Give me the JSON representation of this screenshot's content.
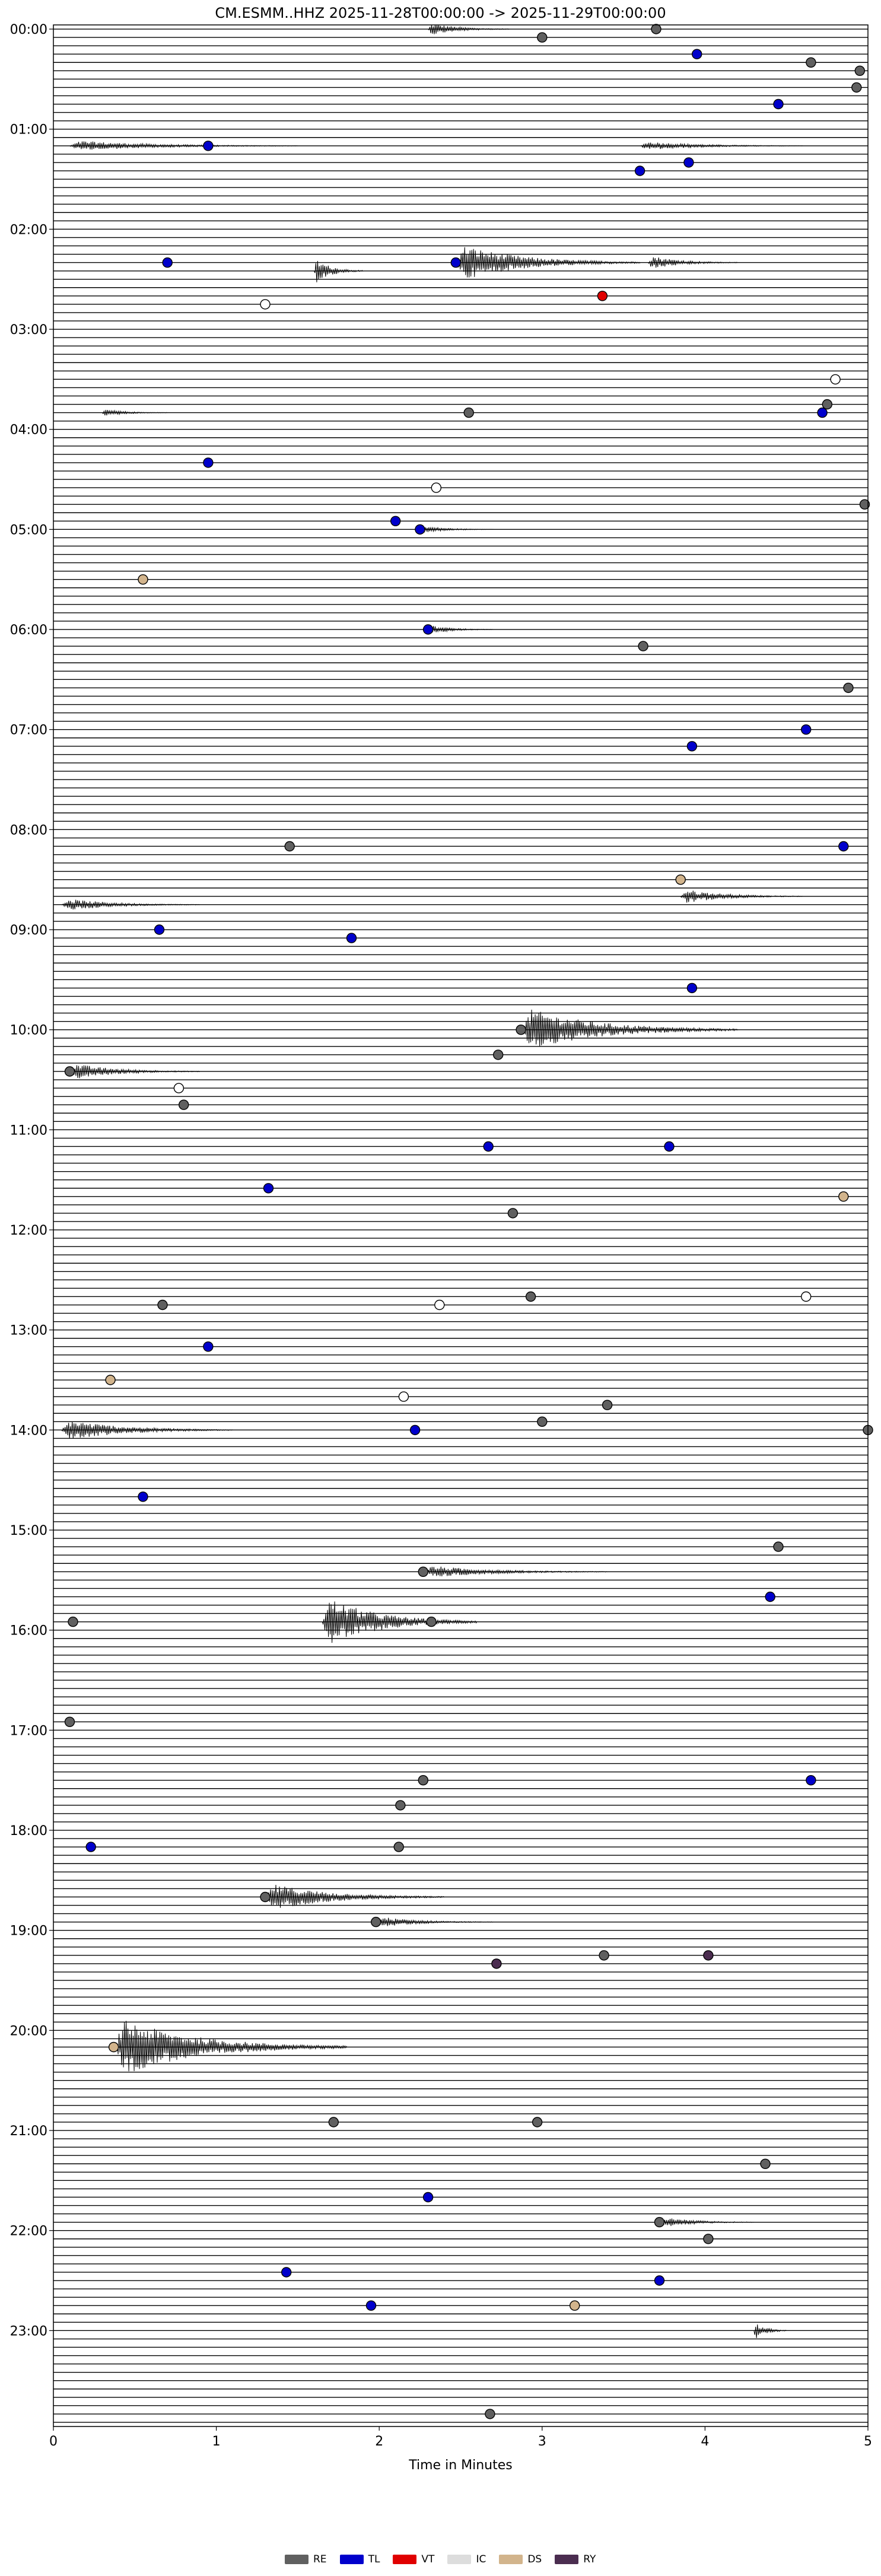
{
  "chart_data": {
    "type": "scatter",
    "title": "CM.ESMM..HHZ  2025-11-28T00:00:00 -> 2025-11-29T00:00:00",
    "xlabel": "Time in Minutes",
    "ylabel": "",
    "xlim": [
      0,
      5
    ],
    "x_ticks": [
      "0",
      "1",
      "2",
      "3",
      "4",
      "5"
    ],
    "y_ticks": [
      "00:00",
      "01:00",
      "02:00",
      "03:00",
      "04:00",
      "05:00",
      "06:00",
      "07:00",
      "08:00",
      "09:00",
      "10:00",
      "11:00",
      "12:00",
      "13:00",
      "14:00",
      "15:00",
      "16:00",
      "17:00",
      "18:00",
      "19:00",
      "20:00",
      "21:00",
      "22:00",
      "23:00"
    ],
    "rows_per_hour": 12,
    "total_rows": 288,
    "legend_position": "bottom",
    "colors": {
      "RE": "#606060",
      "TL": "#0000cc",
      "VT": "#e00000",
      "IC": "#dddddd",
      "DS": "#d2b48c",
      "RY": "#4b2d50"
    },
    "legend": [
      {
        "code": "RE",
        "label": "RE"
      },
      {
        "code": "TL",
        "label": "TL"
      },
      {
        "code": "VT",
        "label": "VT"
      },
      {
        "code": "IC",
        "label": "IC"
      },
      {
        "code": "DS",
        "label": "DS"
      },
      {
        "code": "RY",
        "label": "RY"
      }
    ],
    "events": [
      {
        "row": 0,
        "minute": 3.7,
        "cls": "RE"
      },
      {
        "row": 1,
        "minute": 3.0,
        "cls": "RE"
      },
      {
        "row": 3,
        "minute": 3.95,
        "cls": "TL"
      },
      {
        "row": 4,
        "minute": 4.65,
        "cls": "RE"
      },
      {
        "row": 5,
        "minute": 4.95,
        "cls": "RE"
      },
      {
        "row": 7,
        "minute": 4.93,
        "cls": "RE"
      },
      {
        "row": 9,
        "minute": 4.45,
        "cls": "TL"
      },
      {
        "row": 14,
        "minute": 0.95,
        "cls": "TL"
      },
      {
        "row": 16,
        "minute": 3.9,
        "cls": "TL"
      },
      {
        "row": 17,
        "minute": 3.6,
        "cls": "TL"
      },
      {
        "row": 28,
        "minute": 0.7,
        "cls": "TL"
      },
      {
        "row": 28,
        "minute": 2.47,
        "cls": "TL"
      },
      {
        "row": 32,
        "minute": 3.37,
        "cls": "VT"
      },
      {
        "row": 33,
        "minute": 1.3,
        "cls": "IC"
      },
      {
        "row": 42,
        "minute": 4.8,
        "cls": "IC"
      },
      {
        "row": 45,
        "minute": 4.75,
        "cls": "RE"
      },
      {
        "row": 46,
        "minute": 4.72,
        "cls": "TL"
      },
      {
        "row": 46,
        "minute": 2.55,
        "cls": "RE"
      },
      {
        "row": 52,
        "minute": 0.95,
        "cls": "TL"
      },
      {
        "row": 55,
        "minute": 2.35,
        "cls": "IC"
      },
      {
        "row": 57,
        "minute": 4.98,
        "cls": "RE"
      },
      {
        "row": 59,
        "minute": 2.1,
        "cls": "TL"
      },
      {
        "row": 60,
        "minute": 2.25,
        "cls": "TL"
      },
      {
        "row": 66,
        "minute": 0.55,
        "cls": "DS"
      },
      {
        "row": 72,
        "minute": 2.3,
        "cls": "TL"
      },
      {
        "row": 74,
        "minute": 3.62,
        "cls": "RE"
      },
      {
        "row": 79,
        "minute": 4.88,
        "cls": "RE"
      },
      {
        "row": 84,
        "minute": 4.62,
        "cls": "TL"
      },
      {
        "row": 86,
        "minute": 3.92,
        "cls": "TL"
      },
      {
        "row": 98,
        "minute": 1.45,
        "cls": "RE"
      },
      {
        "row": 98,
        "minute": 4.85,
        "cls": "TL"
      },
      {
        "row": 102,
        "minute": 3.85,
        "cls": "DS"
      },
      {
        "row": 108,
        "minute": 0.65,
        "cls": "TL"
      },
      {
        "row": 109,
        "minute": 1.83,
        "cls": "TL"
      },
      {
        "row": 115,
        "minute": 3.92,
        "cls": "TL"
      },
      {
        "row": 120,
        "minute": 2.87,
        "cls": "RE"
      },
      {
        "row": 123,
        "minute": 2.73,
        "cls": "RE"
      },
      {
        "row": 125,
        "minute": 0.1,
        "cls": "RE"
      },
      {
        "row": 127,
        "minute": 0.77,
        "cls": "IC"
      },
      {
        "row": 129,
        "minute": 0.8,
        "cls": "RE"
      },
      {
        "row": 134,
        "minute": 2.67,
        "cls": "TL"
      },
      {
        "row": 134,
        "minute": 3.78,
        "cls": "TL"
      },
      {
        "row": 139,
        "minute": 1.32,
        "cls": "TL"
      },
      {
        "row": 140,
        "minute": 4.85,
        "cls": "DS"
      },
      {
        "row": 142,
        "minute": 2.82,
        "cls": "RE"
      },
      {
        "row": 152,
        "minute": 2.93,
        "cls": "RE"
      },
      {
        "row": 152,
        "minute": 4.62,
        "cls": "IC"
      },
      {
        "row": 153,
        "minute": 0.67,
        "cls": "RE"
      },
      {
        "row": 153,
        "minute": 2.37,
        "cls": "IC"
      },
      {
        "row": 158,
        "minute": 0.95,
        "cls": "TL"
      },
      {
        "row": 162,
        "minute": 0.35,
        "cls": "DS"
      },
      {
        "row": 164,
        "minute": 2.15,
        "cls": "IC"
      },
      {
        "row": 165,
        "minute": 3.4,
        "cls": "RE"
      },
      {
        "row": 167,
        "minute": 3.0,
        "cls": "RE"
      },
      {
        "row": 168,
        "minute": 2.22,
        "cls": "TL"
      },
      {
        "row": 168,
        "minute": 5.0,
        "cls": "RE"
      },
      {
        "row": 176,
        "minute": 0.55,
        "cls": "TL"
      },
      {
        "row": 182,
        "minute": 4.45,
        "cls": "RE"
      },
      {
        "row": 185,
        "minute": 2.27,
        "cls": "RE"
      },
      {
        "row": 188,
        "minute": 4.4,
        "cls": "TL"
      },
      {
        "row": 191,
        "minute": 0.12,
        "cls": "RE"
      },
      {
        "row": 191,
        "minute": 2.32,
        "cls": "RE"
      },
      {
        "row": 203,
        "minute": 0.1,
        "cls": "RE"
      },
      {
        "row": 210,
        "minute": 2.27,
        "cls": "RE"
      },
      {
        "row": 210,
        "minute": 4.65,
        "cls": "TL"
      },
      {
        "row": 213,
        "minute": 2.13,
        "cls": "RE"
      },
      {
        "row": 218,
        "minute": 0.23,
        "cls": "TL"
      },
      {
        "row": 218,
        "minute": 2.12,
        "cls": "RE"
      },
      {
        "row": 224,
        "minute": 1.3,
        "cls": "RE"
      },
      {
        "row": 227,
        "minute": 1.98,
        "cls": "RE"
      },
      {
        "row": 231,
        "minute": 3.38,
        "cls": "RE"
      },
      {
        "row": 231,
        "minute": 4.02,
        "cls": "RY"
      },
      {
        "row": 232,
        "minute": 2.72,
        "cls": "RY"
      },
      {
        "row": 242,
        "minute": 0.37,
        "cls": "DS"
      },
      {
        "row": 251,
        "minute": 1.72,
        "cls": "RE"
      },
      {
        "row": 251,
        "minute": 2.97,
        "cls": "RE"
      },
      {
        "row": 256,
        "minute": 4.37,
        "cls": "RE"
      },
      {
        "row": 260,
        "minute": 2.3,
        "cls": "TL"
      },
      {
        "row": 263,
        "minute": 3.72,
        "cls": "RE"
      },
      {
        "row": 265,
        "minute": 4.02,
        "cls": "RE"
      },
      {
        "row": 269,
        "minute": 1.43,
        "cls": "TL"
      },
      {
        "row": 270,
        "minute": 3.72,
        "cls": "TL"
      },
      {
        "row": 273,
        "minute": 1.95,
        "cls": "TL"
      },
      {
        "row": 273,
        "minute": 3.2,
        "cls": "DS"
      },
      {
        "row": 286,
        "minute": 2.68,
        "cls": "RE"
      }
    ],
    "bursts": [
      {
        "row": 0,
        "start": 2.3,
        "end": 2.8,
        "amp": 0.35
      },
      {
        "row": 14,
        "start": 0.1,
        "end": 1.5,
        "amp": 0.3
      },
      {
        "row": 14,
        "start": 3.6,
        "end": 4.6,
        "amp": 0.25
      },
      {
        "row": 28,
        "start": 2.47,
        "end": 3.6,
        "amp": 1.0
      },
      {
        "row": 28,
        "start": 3.65,
        "end": 4.2,
        "amp": 0.4
      },
      {
        "row": 29,
        "start": 1.6,
        "end": 1.9,
        "amp": 0.7
      },
      {
        "row": 46,
        "start": 0.3,
        "end": 0.7,
        "amp": 0.2
      },
      {
        "row": 60,
        "start": 2.25,
        "end": 2.7,
        "amp": 0.2
      },
      {
        "row": 72,
        "start": 2.3,
        "end": 2.7,
        "amp": 0.25
      },
      {
        "row": 104,
        "start": 3.85,
        "end": 4.6,
        "amp": 0.4
      },
      {
        "row": 105,
        "start": 0.05,
        "end": 0.9,
        "amp": 0.35
      },
      {
        "row": 120,
        "start": 2.87,
        "end": 4.2,
        "amp": 1.2
      },
      {
        "row": 125,
        "start": 0.1,
        "end": 0.9,
        "amp": 0.45
      },
      {
        "row": 168,
        "start": 0.05,
        "end": 1.1,
        "amp": 0.6
      },
      {
        "row": 185,
        "start": 2.27,
        "end": 3.4,
        "amp": 0.35
      },
      {
        "row": 191,
        "start": 1.65,
        "end": 2.6,
        "amp": 1.4
      },
      {
        "row": 224,
        "start": 1.3,
        "end": 2.4,
        "amp": 0.75
      },
      {
        "row": 227,
        "start": 1.98,
        "end": 2.7,
        "amp": 0.3
      },
      {
        "row": 242,
        "start": 0.37,
        "end": 1.8,
        "amp": 1.6
      },
      {
        "row": 263,
        "start": 3.72,
        "end": 4.3,
        "amp": 0.3
      },
      {
        "row": 276,
        "start": 4.3,
        "end": 4.5,
        "amp": 0.5
      }
    ]
  }
}
